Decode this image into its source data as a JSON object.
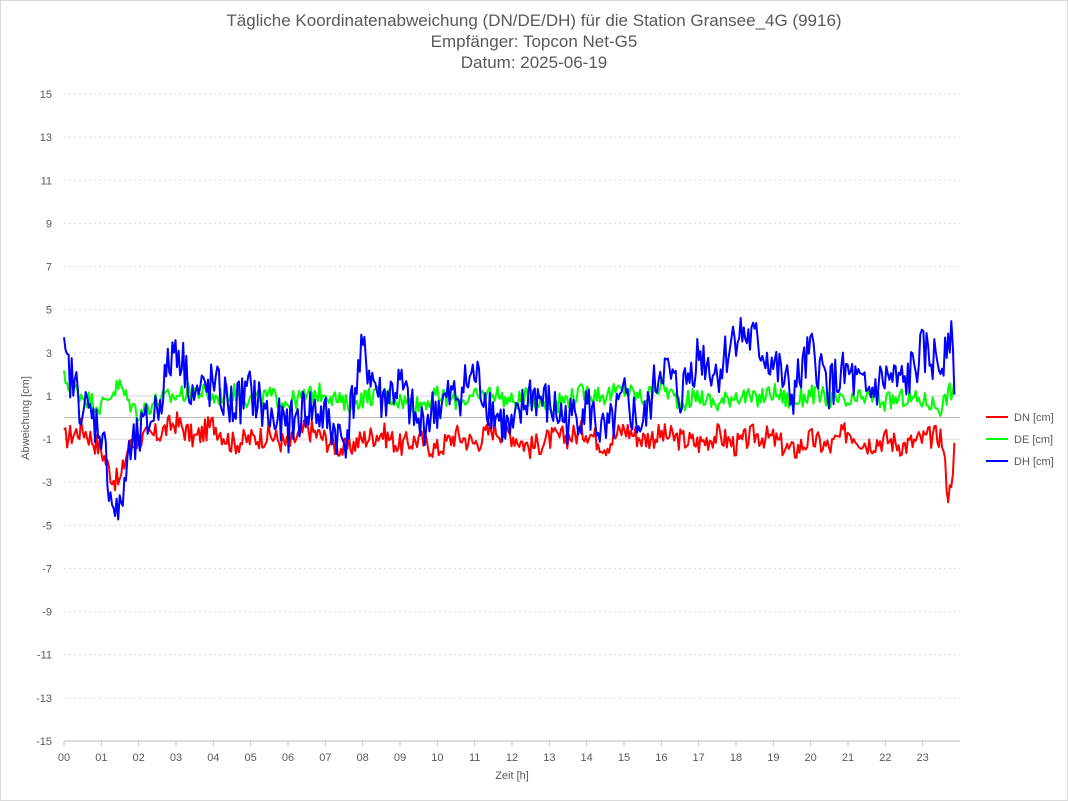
{
  "chart_data": {
    "type": "line",
    "title_lines": [
      "Tägliche Koordinatenabweichung (DN/DE/DH) für die Station Gransee_4G (9916)",
      "Empfänger: Topcon Net-G5",
      "Datum: 2025-06-19"
    ],
    "xlabel": "Zeit [h]",
    "ylabel": "Abweichung [cm]",
    "xlim": [
      0,
      24
    ],
    "ylim": [
      -15,
      15
    ],
    "y_ticks": [
      15,
      13,
      11,
      9,
      7,
      5,
      3,
      1,
      -1,
      -3,
      -5,
      -7,
      -9,
      -11,
      -13,
      -15
    ],
    "x_tick_labels": [
      "00",
      "01",
      "02",
      "03",
      "04",
      "05",
      "06",
      "07",
      "08",
      "09",
      "10",
      "11",
      "12",
      "13",
      "14",
      "15",
      "16",
      "17",
      "18",
      "19",
      "20",
      "21",
      "22",
      "23"
    ],
    "grid": true,
    "legend_position": "right",
    "x": [
      0.0,
      0.5,
      1.0,
      1.3,
      1.5,
      1.7,
      2.0,
      2.5,
      3.0,
      3.5,
      4.0,
      4.5,
      5.0,
      5.5,
      6.0,
      6.5,
      7.0,
      7.5,
      8.0,
      8.5,
      9.0,
      9.5,
      10.0,
      10.5,
      11.0,
      11.5,
      12.0,
      12.5,
      13.0,
      13.5,
      14.0,
      14.5,
      15.0,
      15.5,
      16.0,
      16.5,
      17.0,
      17.5,
      18.0,
      18.5,
      19.0,
      19.5,
      20.0,
      20.5,
      21.0,
      21.5,
      22.0,
      22.5,
      23.0,
      23.5,
      23.7,
      23.85
    ],
    "series": [
      {
        "name": "DN [cm]",
        "color": "#ff0000",
        "values": [
          -1.0,
          -0.5,
          -1.5,
          -2.8,
          -3.0,
          -1.5,
          -1.0,
          -0.8,
          -0.2,
          -1.0,
          -0.3,
          -1.2,
          -1.0,
          -0.8,
          -1.3,
          -0.5,
          -1.0,
          -1.5,
          -1.0,
          -0.7,
          -1.3,
          -1.0,
          -1.5,
          -0.8,
          -1.2,
          -0.5,
          -0.8,
          -1.4,
          -1.0,
          -0.9,
          -0.6,
          -1.3,
          -0.5,
          -1.0,
          -0.8,
          -1.0,
          -1.2,
          -0.8,
          -1.3,
          -0.8,
          -1.0,
          -1.6,
          -1.0,
          -1.4,
          -0.6,
          -1.2,
          -1.0,
          -1.3,
          -1.0,
          -0.8,
          -3.8,
          -1.5
        ]
      },
      {
        "name": "DE [cm]",
        "color": "#00ff00",
        "values": [
          1.8,
          1.0,
          0.5,
          1.2,
          1.5,
          0.8,
          0.2,
          0.8,
          1.0,
          1.3,
          0.9,
          1.2,
          0.8,
          1.0,
          0.7,
          1.0,
          1.2,
          0.6,
          0.9,
          1.1,
          0.8,
          0.6,
          1.0,
          0.8,
          0.9,
          1.2,
          0.7,
          1.0,
          0.5,
          0.9,
          1.2,
          1.0,
          1.3,
          0.9,
          1.5,
          0.7,
          1.0,
          0.6,
          1.1,
          0.8,
          1.2,
          0.7,
          1.1,
          0.9,
          0.6,
          1.0,
          0.7,
          0.9,
          0.8,
          0.5,
          1.2,
          1.3
        ]
      },
      {
        "name": "DH [cm]",
        "color": "#0000ff",
        "values": [
          2.7,
          0.5,
          -0.5,
          -4.0,
          -4.6,
          -2.0,
          -1.0,
          0.5,
          3.5,
          1.0,
          1.5,
          0.5,
          1.2,
          0.0,
          -0.5,
          0.5,
          0.0,
          -1.2,
          3.0,
          0.8,
          1.5,
          -0.5,
          0.5,
          1.0,
          2.0,
          0.3,
          -0.8,
          1.2,
          0.5,
          -0.2,
          0.6,
          -1.0,
          0.8,
          -0.5,
          2.5,
          1.0,
          3.0,
          2.0,
          4.0,
          3.5,
          2.5,
          1.0,
          3.0,
          1.5,
          2.0,
          1.0,
          1.8,
          1.5,
          3.0,
          2.5,
          4.4,
          2.0
        ]
      }
    ]
  }
}
